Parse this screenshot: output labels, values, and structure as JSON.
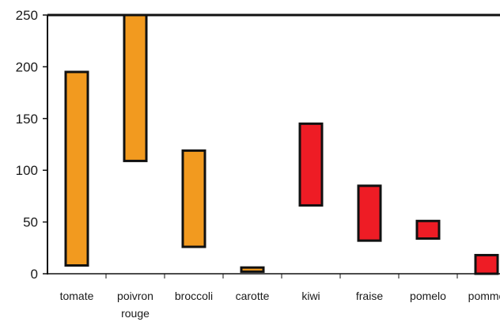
{
  "chart_data": {
    "type": "bar",
    "subtype": "floating-range",
    "title": "",
    "xlabel": "",
    "ylabel": "",
    "ylim": [
      0,
      250
    ],
    "yticks": [
      0,
      50,
      100,
      150,
      200,
      250
    ],
    "grid": false,
    "legend": "none",
    "categories": [
      {
        "label": [
          "tomate"
        ],
        "low": 8,
        "high": 195,
        "color": "#f29a1f"
      },
      {
        "label": [
          "poivron",
          "rouge"
        ],
        "low": 109,
        "high": 250,
        "color": "#f29a1f"
      },
      {
        "label": [
          "broccoli"
        ],
        "low": 26,
        "high": 119,
        "color": "#f29a1f"
      },
      {
        "label": [
          "carotte"
        ],
        "low": 2,
        "high": 6,
        "color": "#f29a1f"
      },
      {
        "label": [
          "kiwi"
        ],
        "low": 66,
        "high": 145,
        "color": "#ee1c25"
      },
      {
        "label": [
          "fraise"
        ],
        "low": 32,
        "high": 85,
        "color": "#ee1c25"
      },
      {
        "label": [
          "pomelo"
        ],
        "low": 34,
        "high": 51,
        "color": "#ee1c25"
      },
      {
        "label": [
          "pomme"
        ],
        "low": 0,
        "high": 18,
        "color": "#ee1c25"
      }
    ],
    "colors": {
      "vegetable": "#f29a1f",
      "fruit": "#ee1c25",
      "outline": "#111111"
    }
  }
}
